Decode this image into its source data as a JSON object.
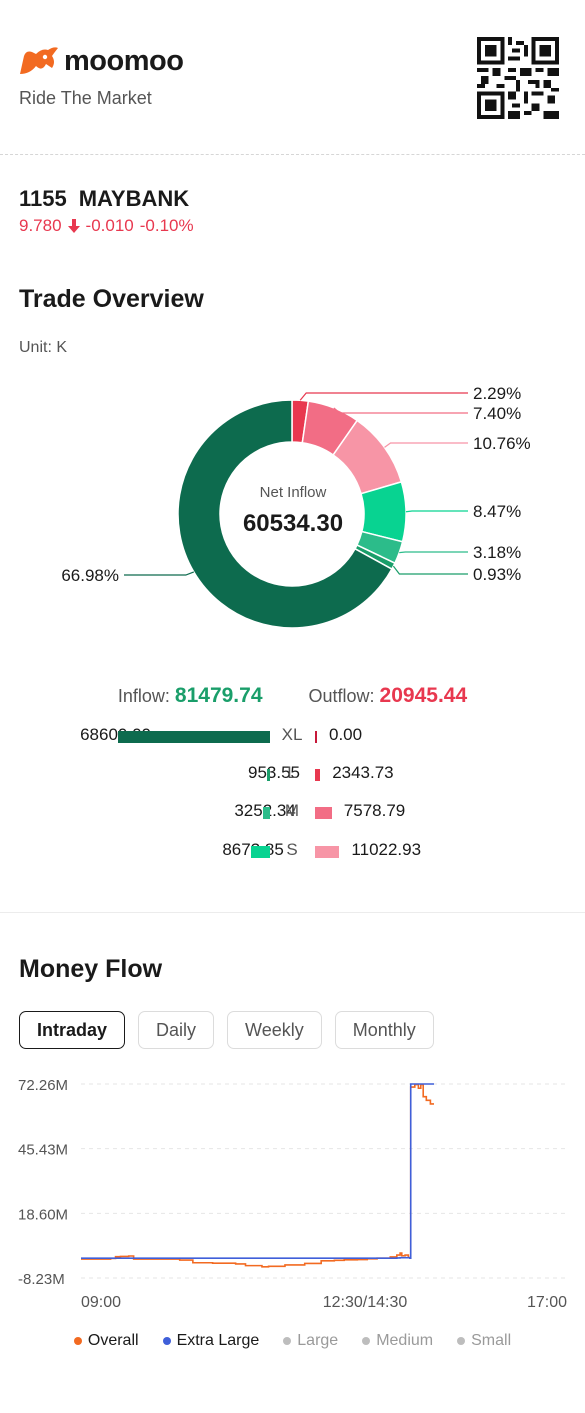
{
  "brand": {
    "name": "moomoo",
    "tagline": "Ride The Market"
  },
  "stock": {
    "code": "1155",
    "name": "MAYBANK",
    "price": "9.780",
    "change": "-0.010",
    "change_pct": "-0.10%"
  },
  "trade_overview": {
    "title": "Trade Overview",
    "unit": "Unit: K",
    "center_label": "Net Inflow",
    "center_value": "60534.30",
    "inflow_label": "Inflow:",
    "inflow_value": "81479.74",
    "outflow_label": "Outflow:",
    "outflow_value": "20945.44",
    "rows": [
      {
        "level": "XL",
        "in": "68600.00",
        "out": "0.00",
        "in_frac": 1.0,
        "out_frac": 0.0
      },
      {
        "level": "L",
        "in": "953.55",
        "out": "2343.73",
        "in_frac": 0.0139,
        "out_frac": 0.0342
      },
      {
        "level": "M",
        "in": "3252.34",
        "out": "7578.79",
        "in_frac": 0.0474,
        "out_frac": 0.1105
      },
      {
        "level": "S",
        "in": "8673.85",
        "out": "11022.93",
        "in_frac": 0.1264,
        "out_frac": 0.1607
      }
    ]
  },
  "chart_data": [
    {
      "type": "pie",
      "title": "Trade Overview",
      "unit": "K",
      "categories": [
        "Outflow XL",
        "Outflow L",
        "Outflow M",
        "Outflow S",
        "Inflow S",
        "Inflow M",
        "Inflow L",
        "Inflow XL"
      ],
      "values": [
        0.0,
        2343.73,
        7578.79,
        11022.93,
        8673.85,
        3252.34,
        953.55,
        68600.0
      ],
      "labels": [
        "2.29%",
        "7.40%",
        "10.76%",
        "8.47%",
        "3.18%",
        "0.93%",
        "66.98%"
      ],
      "colors": [
        "#e8384f",
        "#f26d85",
        "#f795a6",
        "#08d391",
        "#2cbc8a",
        "#1a9e6a",
        "#0d6b4e"
      ]
    },
    {
      "type": "line",
      "title": "Money Flow",
      "x_ticks": [
        "09:00",
        "12:30/14:30",
        "17:00"
      ],
      "y_ticks": [
        "72.26M",
        "45.43M",
        "18.60M",
        "-8.23M"
      ],
      "ylim": [
        -8.23,
        72.26
      ],
      "y_unit": "M",
      "series": [
        {
          "name": "Overall",
          "color": "#f26a21",
          "x": [
            0,
            0.07,
            0.09,
            0.105,
            0.12,
            0.145,
            0.16,
            0.3,
            0.34,
            0.4,
            0.47,
            0.5,
            0.55,
            0.57,
            0.62,
            0.68,
            0.73,
            0.77,
            0.8,
            0.84,
            0.87,
            0.9,
            0.94,
            0.96,
            0.97,
            0.975,
            0.985,
            0.995,
            1.0
          ],
          "y": [
            -0.4,
            -0.4,
            -0.1,
            0.6,
            0.7,
            0.9,
            -0.4,
            -0.8,
            -1.9,
            -2.1,
            -2.4,
            -3.1,
            -3.6,
            -3.4,
            -2.8,
            -2.2,
            -1.1,
            -0.9,
            -0.7,
            -0.6,
            -0.3,
            0.0,
            0.5,
            1.3,
            2.1,
            1.0,
            1.3,
            0.2,
            0.4
          ]
        },
        {
          "name": "Extra Large",
          "color": "#3f5fd9",
          "x": [
            0,
            0.5,
            0.95,
            0.96,
            0.97,
            1.0
          ],
          "y": [
            0.0,
            0.0,
            0.0,
            0.1,
            0.2,
            0.2
          ]
        }
      ],
      "late_segment": {
        "overall": [
          [
            0,
            0
          ],
          [
            0.03,
            71.0
          ],
          [
            0.2,
            72.0
          ],
          [
            0.35,
            70.5
          ],
          [
            0.45,
            72.0
          ],
          [
            0.55,
            67.0
          ],
          [
            0.68,
            65.5
          ],
          [
            0.8,
            65.5
          ],
          [
            0.85,
            64.0
          ],
          [
            1.0,
            64.0
          ]
        ],
        "extra_large": [
          [
            0,
            0
          ],
          [
            0.03,
            72.26
          ],
          [
            1.0,
            72.26
          ]
        ]
      },
      "legend": [
        {
          "name": "Overall",
          "color": "#f26a21",
          "active": true
        },
        {
          "name": "Extra Large",
          "color": "#3f5fd9",
          "active": true
        },
        {
          "name": "Large",
          "color": "#bdbdbd",
          "active": false
        },
        {
          "name": "Medium",
          "color": "#bdbdbd",
          "active": false
        },
        {
          "name": "Small",
          "color": "#bdbdbd",
          "active": false
        }
      ]
    }
  ],
  "money_flow": {
    "title": "Money Flow",
    "tabs": [
      {
        "label": "Intraday",
        "active": true
      },
      {
        "label": "Daily",
        "active": false
      },
      {
        "label": "Weekly",
        "active": false
      },
      {
        "label": "Monthly",
        "active": false
      }
    ]
  },
  "colors": {
    "brand": "#f26a21",
    "up": "#1a9e6a",
    "down": "#e8384f",
    "xl_in": "#0d6b4e",
    "l_in": "#1a9e6a",
    "m_in": "#2cbc8a",
    "s_in": "#08d391",
    "xl_out": "#c7193a",
    "l_out": "#e8384f",
    "m_out": "#f26d85",
    "s_out": "#f795a6"
  }
}
